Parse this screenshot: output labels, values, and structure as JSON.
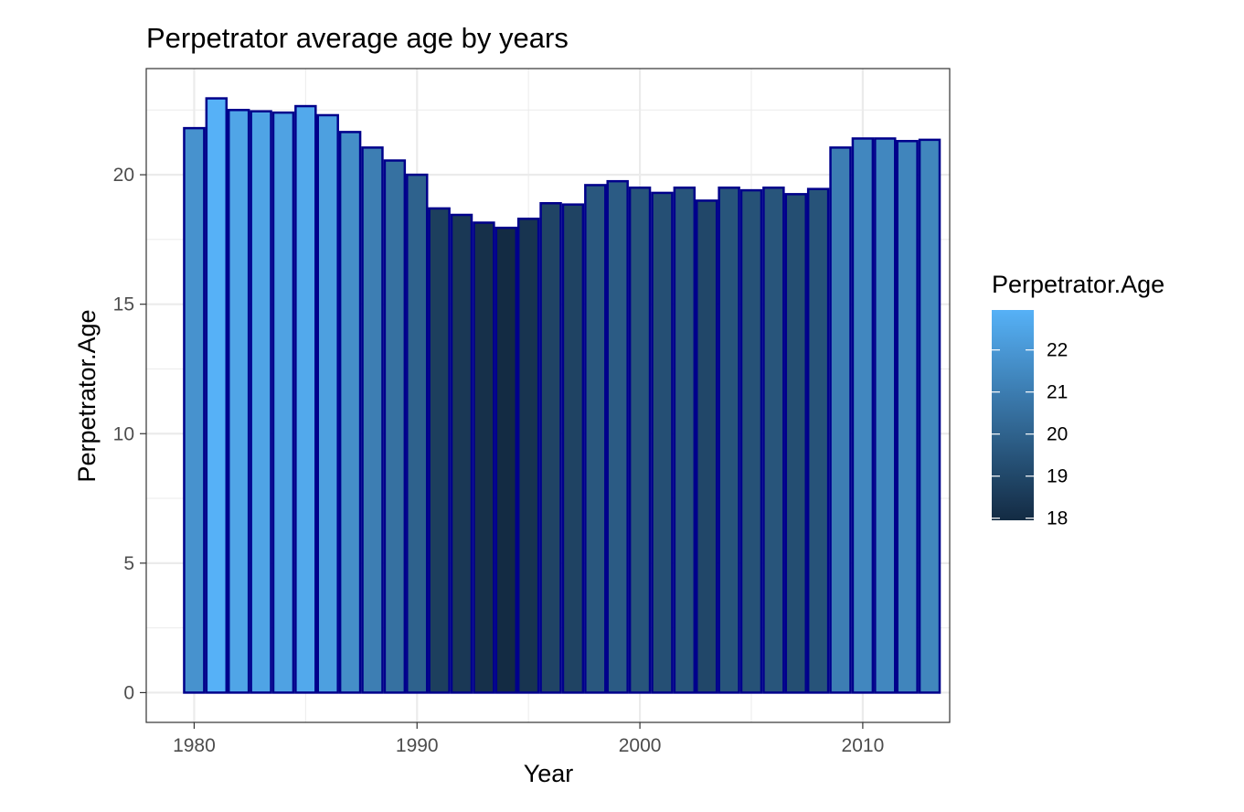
{
  "chart_data": {
    "type": "bar",
    "title": "Perpetrator average age by years",
    "xlabel": "Year",
    "ylabel": "Perpetrator.Age",
    "x": [
      1980,
      1981,
      1982,
      1983,
      1984,
      1985,
      1986,
      1987,
      1988,
      1989,
      1990,
      1991,
      1992,
      1993,
      1994,
      1995,
      1996,
      1997,
      1998,
      1999,
      2000,
      2001,
      2002,
      2003,
      2004,
      2005,
      2006,
      2007,
      2008,
      2009,
      2010,
      2011,
      2012,
      2013
    ],
    "values": [
      21.8,
      22.95,
      22.5,
      22.45,
      22.4,
      22.65,
      22.3,
      21.65,
      21.05,
      20.55,
      20.0,
      18.7,
      18.45,
      18.15,
      17.95,
      18.3,
      18.9,
      18.85,
      19.6,
      19.75,
      19.5,
      19.3,
      19.5,
      19.0,
      19.5,
      19.4,
      19.5,
      19.25,
      19.45,
      21.05,
      21.4,
      21.4,
      21.3,
      21.35
    ],
    "xlim": [
      1977.85,
      2013.9
    ],
    "ylim": [
      -1.15,
      24.1
    ],
    "x_ticks": [
      "1980",
      "1990",
      "2000",
      "2010"
    ],
    "y_ticks": [
      "0",
      "5",
      "10",
      "15",
      "20"
    ],
    "grid": true,
    "bar_outline_color": "#00008b",
    "color_scale": {
      "low_color": "#132b43",
      "high_color": "#56b1f7",
      "min": 17.95,
      "max": 22.95
    },
    "legend": {
      "title": "Perpetrator.Age",
      "position": "right",
      "ticks": [
        "22",
        "21",
        "20",
        "19",
        "18"
      ]
    }
  }
}
